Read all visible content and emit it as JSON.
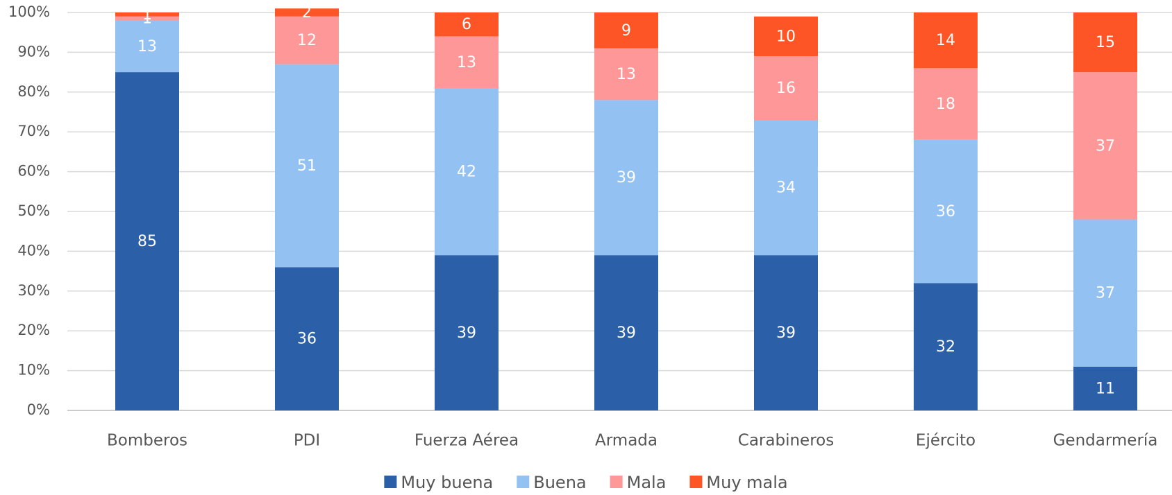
{
  "chart_data": {
    "type": "stacked_bar",
    "categories": [
      "Bomberos",
      "PDI",
      "Fuerza Aérea",
      "Armada",
      "Carabineros",
      "Ejército",
      "Gendarmería"
    ],
    "series": [
      {
        "name": "Muy buena",
        "color": "#2b60a9",
        "values": [
          85,
          36,
          39,
          39,
          39,
          32,
          11
        ]
      },
      {
        "name": "Buena",
        "color": "#93c1f1",
        "values": [
          13,
          51,
          42,
          39,
          34,
          36,
          37
        ]
      },
      {
        "name": "Mala",
        "color": "#fe9797",
        "values": [
          1,
          12,
          13,
          13,
          16,
          18,
          37
        ]
      },
      {
        "name": "Muy mala",
        "color": "#fd5526",
        "values": [
          1,
          2,
          6,
          9,
          10,
          14,
          15
        ]
      }
    ],
    "ylim": [
      0,
      100
    ],
    "yticks": [
      {
        "value": 0,
        "label": "0%"
      },
      {
        "value": 10,
        "label": "10%"
      },
      {
        "value": 20,
        "label": "20%"
      },
      {
        "value": 30,
        "label": "30%"
      },
      {
        "value": 40,
        "label": "40%"
      },
      {
        "value": 50,
        "label": "50%"
      },
      {
        "value": 60,
        "label": "60%"
      },
      {
        "value": 70,
        "label": "70%"
      },
      {
        "value": 80,
        "label": "80%"
      },
      {
        "value": 90,
        "label": "90%"
      },
      {
        "value": 100,
        "label": "100%"
      }
    ],
    "grid": true,
    "legend": "bottom"
  }
}
